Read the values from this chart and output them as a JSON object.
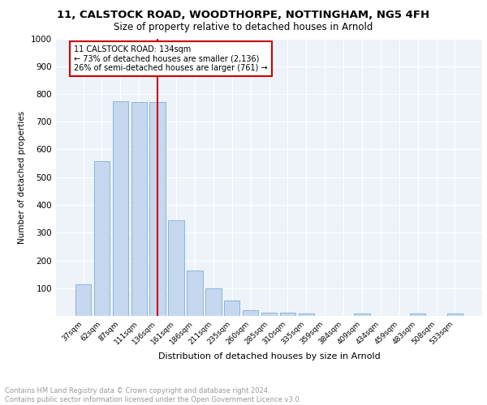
{
  "title1": "11, CALSTOCK ROAD, WOODTHORPE, NOTTINGHAM, NG5 4FH",
  "title2": "Size of property relative to detached houses in Arnold",
  "xlabel": "Distribution of detached houses by size in Arnold",
  "ylabel": "Number of detached properties",
  "categories": [
    "37sqm",
    "62sqm",
    "87sqm",
    "111sqm",
    "136sqm",
    "161sqm",
    "186sqm",
    "211sqm",
    "235sqm",
    "260sqm",
    "285sqm",
    "310sqm",
    "335sqm",
    "359sqm",
    "384sqm",
    "409sqm",
    "434sqm",
    "459sqm",
    "483sqm",
    "508sqm",
    "533sqm"
  ],
  "values": [
    113,
    558,
    775,
    770,
    770,
    345,
    163,
    98,
    55,
    20,
    13,
    13,
    8,
    0,
    0,
    10,
    0,
    0,
    10,
    0,
    10
  ],
  "bar_color": "#c5d8f0",
  "bar_edge_color": "#7bafd4",
  "vline_x_index": 4,
  "vline_color": "#cc0000",
  "annotation_line1": "11 CALSTOCK ROAD: 134sqm",
  "annotation_line2": "← 73% of detached houses are smaller (2,136)",
  "annotation_line3": "26% of semi-detached houses are larger (761) →",
  "annotation_box_color": "#cc0000",
  "background_color": "#eef2f9",
  "grid_color": "#ffffff",
  "footer_text": "Contains HM Land Registry data © Crown copyright and database right 2024.\nContains public sector information licensed under the Open Government Licence v3.0.",
  "ylim": [
    0,
    1000
  ],
  "yticks": [
    0,
    100,
    200,
    300,
    400,
    500,
    600,
    700,
    800,
    900,
    1000
  ]
}
